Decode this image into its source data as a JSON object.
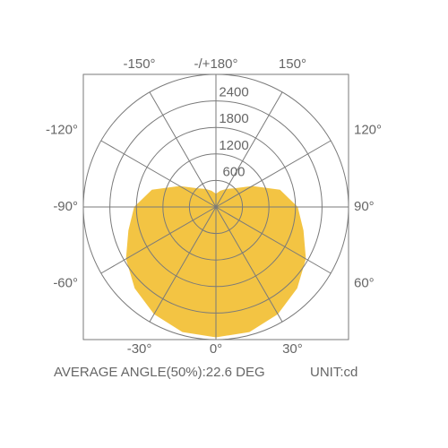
{
  "chart_data": {
    "type": "polar",
    "angles": [
      -180,
      -165,
      -150,
      -135,
      -120,
      -105,
      -90,
      -75,
      -60,
      -45,
      -30,
      -15,
      0,
      15,
      30,
      45,
      60,
      75,
      90,
      105,
      120,
      135,
      150,
      165,
      180
    ],
    "series": [
      {
        "color": "#f3c443",
        "values": [
          300,
          380,
          470,
          600,
          950,
          1500,
          1850,
          2050,
          2350,
          2600,
          2800,
          2930,
          2950,
          2930,
          2800,
          2600,
          2350,
          2050,
          1850,
          1500,
          950,
          600,
          470,
          380,
          300
        ]
      }
    ],
    "rlim": [
      0,
      3000
    ],
    "rticks": [
      600,
      1200,
      1800,
      2400
    ],
    "angle_ticks": [
      {
        "value": 180,
        "label": "-/+180°"
      },
      {
        "value": 150,
        "label": "150°"
      },
      {
        "value": -150,
        "label": "-150°"
      },
      {
        "value": 120,
        "label": "120°"
      },
      {
        "value": -120,
        "label": "-120°"
      },
      {
        "value": 90,
        "label": "90°"
      },
      {
        "value": -90,
        "label": "-90°"
      },
      {
        "value": 60,
        "label": "60°"
      },
      {
        "value": -60,
        "label": "-60°"
      },
      {
        "value": 30,
        "label": "30°"
      },
      {
        "value": -30,
        "label": "-30°"
      },
      {
        "value": 0,
        "label": "0°"
      }
    ],
    "footer_left": "AVERAGE ANGLE(50%):22.6 DEG",
    "footer_right": "UNIT:cd"
  }
}
